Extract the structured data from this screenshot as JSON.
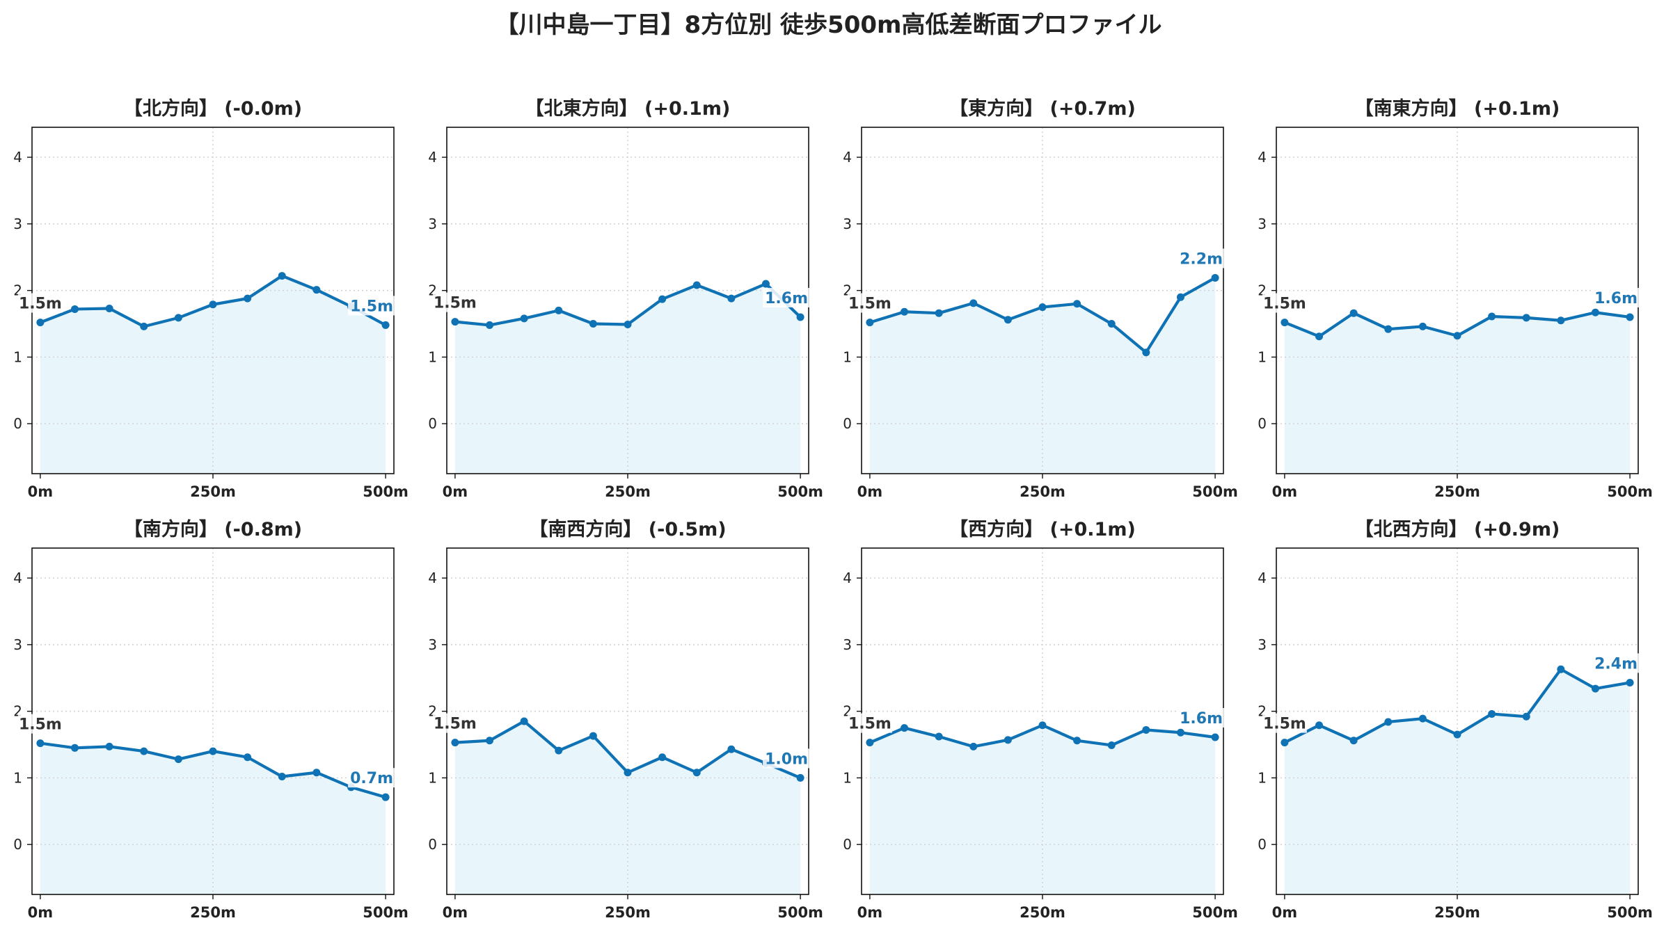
{
  "figure": {
    "title": "【川中島一丁目】8方位別 徒歩500m高低差断面プロファイル",
    "colors": {
      "line": "#0e72b5",
      "fill": "#e8f6fc",
      "grid": "#cfcfcf",
      "start_label": "#333333",
      "end_label": "#1f77b4"
    }
  },
  "chart_data": [
    {
      "type": "area",
      "title": "【北方向】 (-0.0m)",
      "x": [
        0,
        50,
        100,
        150,
        200,
        250,
        300,
        350,
        400,
        450,
        500
      ],
      "y": [
        1.52,
        1.72,
        1.73,
        1.46,
        1.59,
        1.79,
        1.88,
        2.22,
        2.01,
        1.76,
        1.48
      ],
      "x_ticks": [
        "0m",
        "250m",
        "500m"
      ],
      "y_ticks": [
        0,
        1,
        2,
        3,
        4
      ],
      "ylim": [
        -0.75,
        4.45
      ],
      "xlim": [
        -12,
        512
      ],
      "start_label": "1.5m",
      "end_label": "1.5m",
      "grid": true
    },
    {
      "type": "area",
      "title": "【北東方向】 (+0.1m)",
      "x": [
        0,
        50,
        100,
        150,
        200,
        250,
        300,
        350,
        400,
        450,
        500
      ],
      "y": [
        1.53,
        1.48,
        1.58,
        1.7,
        1.5,
        1.49,
        1.87,
        2.08,
        1.88,
        2.1,
        1.6
      ],
      "x_ticks": [
        "0m",
        "250m",
        "500m"
      ],
      "y_ticks": [
        0,
        1,
        2,
        3,
        4
      ],
      "ylim": [
        -0.75,
        4.45
      ],
      "xlim": [
        -12,
        512
      ],
      "start_label": "1.5m",
      "end_label": "1.6m",
      "grid": true
    },
    {
      "type": "area",
      "title": "【東方向】 (+0.7m)",
      "x": [
        0,
        50,
        100,
        150,
        200,
        250,
        300,
        350,
        400,
        450,
        500
      ],
      "y": [
        1.52,
        1.68,
        1.66,
        1.81,
        1.56,
        1.75,
        1.8,
        1.5,
        1.07,
        1.9,
        2.19
      ],
      "x_ticks": [
        "0m",
        "250m",
        "500m"
      ],
      "y_ticks": [
        0,
        1,
        2,
        3,
        4
      ],
      "ylim": [
        -0.75,
        4.45
      ],
      "xlim": [
        -12,
        512
      ],
      "start_label": "1.5m",
      "end_label": "2.2m",
      "grid": true
    },
    {
      "type": "area",
      "title": "【南東方向】 (+0.1m)",
      "x": [
        0,
        50,
        100,
        150,
        200,
        250,
        300,
        350,
        400,
        450,
        500
      ],
      "y": [
        1.52,
        1.31,
        1.66,
        1.42,
        1.46,
        1.32,
        1.61,
        1.59,
        1.55,
        1.67,
        1.6
      ],
      "x_ticks": [
        "0m",
        "250m",
        "500m"
      ],
      "y_ticks": [
        0,
        1,
        2,
        3,
        4
      ],
      "ylim": [
        -0.75,
        4.45
      ],
      "xlim": [
        -12,
        512
      ],
      "start_label": "1.5m",
      "end_label": "1.6m",
      "grid": true
    },
    {
      "type": "area",
      "title": "【南方向】 (-0.8m)",
      "x": [
        0,
        50,
        100,
        150,
        200,
        250,
        300,
        350,
        400,
        450,
        500
      ],
      "y": [
        1.52,
        1.45,
        1.47,
        1.4,
        1.28,
        1.4,
        1.31,
        1.02,
        1.08,
        0.86,
        0.71
      ],
      "x_ticks": [
        "0m",
        "250m",
        "500m"
      ],
      "y_ticks": [
        0,
        1,
        2,
        3,
        4
      ],
      "ylim": [
        -0.75,
        4.45
      ],
      "xlim": [
        -12,
        512
      ],
      "start_label": "1.5m",
      "end_label": "0.7m",
      "grid": true
    },
    {
      "type": "area",
      "title": "【南西方向】 (-0.5m)",
      "x": [
        0,
        50,
        100,
        150,
        200,
        250,
        300,
        350,
        400,
        450,
        500
      ],
      "y": [
        1.53,
        1.56,
        1.85,
        1.41,
        1.63,
        1.08,
        1.31,
        1.08,
        1.43,
        1.22,
        1.0
      ],
      "x_ticks": [
        "0m",
        "250m",
        "500m"
      ],
      "y_ticks": [
        0,
        1,
        2,
        3,
        4
      ],
      "ylim": [
        -0.75,
        4.45
      ],
      "xlim": [
        -12,
        512
      ],
      "start_label": "1.5m",
      "end_label": "1.0m",
      "grid": true
    },
    {
      "type": "area",
      "title": "【西方向】 (+0.1m)",
      "x": [
        0,
        50,
        100,
        150,
        200,
        250,
        300,
        350,
        400,
        450,
        500
      ],
      "y": [
        1.53,
        1.75,
        1.62,
        1.47,
        1.57,
        1.79,
        1.56,
        1.49,
        1.72,
        1.68,
        1.61
      ],
      "x_ticks": [
        "0m",
        "250m",
        "500m"
      ],
      "y_ticks": [
        0,
        1,
        2,
        3,
        4
      ],
      "ylim": [
        -0.75,
        4.45
      ],
      "xlim": [
        -12,
        512
      ],
      "start_label": "1.5m",
      "end_label": "1.6m",
      "grid": true
    },
    {
      "type": "area",
      "title": "【北西方向】 (+0.9m)",
      "x": [
        0,
        50,
        100,
        150,
        200,
        250,
        300,
        350,
        400,
        450,
        500
      ],
      "y": [
        1.53,
        1.79,
        1.56,
        1.84,
        1.89,
        1.65,
        1.96,
        1.92,
        2.63,
        2.34,
        2.43
      ],
      "x_ticks": [
        "0m",
        "250m",
        "500m"
      ],
      "y_ticks": [
        0,
        1,
        2,
        3,
        4
      ],
      "ylim": [
        -0.75,
        4.45
      ],
      "xlim": [
        -12,
        512
      ],
      "start_label": "1.5m",
      "end_label": "2.4m",
      "grid": true
    }
  ]
}
